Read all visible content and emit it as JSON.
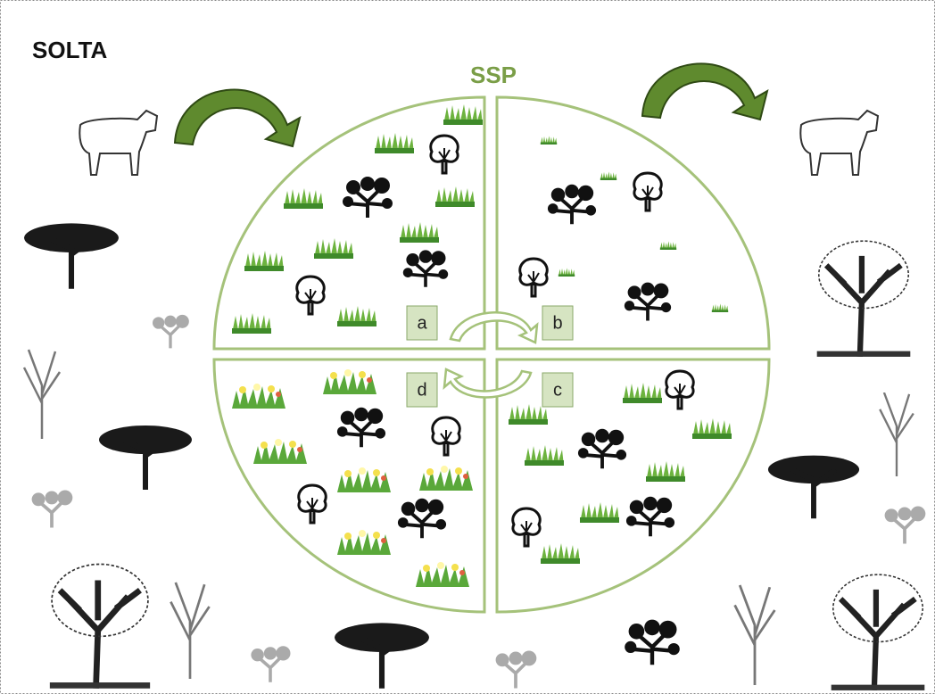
{
  "title": "SOLTA",
  "circle_label": "SSP",
  "quadrants": [
    "a",
    "b",
    "c",
    "d"
  ]
}
